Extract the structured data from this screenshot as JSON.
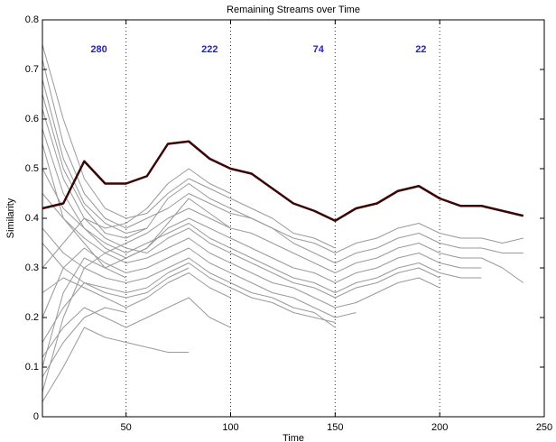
{
  "chart_data": {
    "type": "line",
    "title": "Remaining Streams over Time",
    "xlabel": "Time",
    "ylabel": "Similarity",
    "x": [
      10,
      20,
      30,
      40,
      50,
      60,
      70,
      80,
      90,
      100,
      110,
      120,
      130,
      140,
      150,
      160,
      170,
      180,
      190,
      200,
      210,
      220,
      230,
      240
    ],
    "xlim": [
      10,
      250
    ],
    "xticks": [
      50,
      100,
      150,
      200,
      250
    ],
    "ylim": [
      0,
      0.8
    ],
    "yticks": [
      0,
      0.1,
      0.2,
      0.3,
      0.4,
      0.5,
      0.6,
      0.7,
      0.8
    ],
    "markers": [
      50,
      100,
      150,
      200
    ],
    "annotation_color": "#1f1fd6",
    "annotations": [
      {
        "text": "280",
        "x": 37,
        "y": 0.74
      },
      {
        "text": "222",
        "x": 90,
        "y": 0.74
      },
      {
        "text": "74",
        "x": 142,
        "y": 0.74
      },
      {
        "text": "22",
        "x": 191,
        "y": 0.74
      }
    ],
    "series": [
      {
        "color": "#9a9a9a",
        "values": [
          0.72,
          0.55,
          0.45,
          0.4,
          0.38,
          0.4,
          0.42,
          0.45,
          0.43,
          0.41,
          0.4,
          0.38,
          0.36,
          0.35,
          0.33,
          0.35,
          0.36,
          0.38,
          0.39,
          0.37,
          0.36,
          0.36,
          0.35,
          0.36
        ]
      },
      {
        "color": "#9a9a9a",
        "values": [
          0.65,
          0.5,
          0.42,
          0.37,
          0.36,
          0.38,
          0.44,
          0.47,
          0.44,
          0.42,
          0.4,
          0.38,
          0.35,
          0.33,
          0.31,
          0.33,
          0.34,
          0.36,
          0.37,
          0.35,
          0.34,
          0.34,
          0.33,
          0.33
        ]
      },
      {
        "color": "#9a9a9a",
        "values": [
          0.05,
          0.2,
          0.3,
          0.33,
          0.35,
          0.37,
          0.4,
          0.42,
          0.4,
          0.38,
          0.37,
          0.35,
          0.33,
          0.31,
          0.29,
          0.31,
          0.32,
          0.34,
          0.35,
          0.33,
          0.32,
          0.32,
          0.3,
          0.27
        ]
      },
      {
        "color": "#9a9a9a",
        "values": [
          0.1,
          0.25,
          0.32,
          0.3,
          0.32,
          0.34,
          0.38,
          0.4,
          0.38,
          0.36,
          0.34,
          0.32,
          0.3,
          0.29,
          0.27,
          0.29,
          0.3,
          0.32,
          0.33,
          0.31,
          0.3,
          0.3,
          null,
          null
        ]
      },
      {
        "color": "#9a9a9a",
        "values": [
          0.58,
          0.45,
          0.38,
          0.35,
          0.33,
          0.35,
          0.37,
          0.39,
          0.36,
          0.34,
          0.32,
          0.3,
          0.28,
          0.27,
          0.25,
          0.27,
          0.28,
          0.3,
          0.31,
          0.29,
          0.28,
          0.28,
          null,
          null
        ]
      },
      {
        "color": "#9a9a9a",
        "values": [
          0.3,
          0.35,
          0.4,
          0.36,
          0.34,
          0.33,
          0.36,
          0.38,
          0.35,
          0.33,
          0.31,
          0.29,
          0.27,
          0.26,
          0.24,
          0.26,
          0.27,
          0.29,
          0.3,
          0.28,
          null,
          null,
          null,
          null
        ]
      },
      {
        "color": "#9a9a9a",
        "values": [
          0.45,
          0.4,
          0.36,
          0.33,
          0.31,
          0.32,
          0.34,
          0.36,
          0.33,
          0.31,
          0.29,
          0.27,
          0.26,
          0.24,
          0.22,
          0.23,
          0.25,
          0.27,
          0.28,
          0.26,
          null,
          null,
          null,
          null
        ]
      },
      {
        "color": "#9a9a9a",
        "values": [
          0.2,
          0.3,
          0.34,
          0.31,
          0.29,
          0.3,
          0.32,
          0.34,
          0.31,
          0.29,
          0.27,
          0.25,
          0.24,
          0.22,
          0.2,
          0.21,
          null,
          null,
          null,
          null,
          null,
          null,
          null,
          null
        ]
      },
      {
        "color": "#9a9a9a",
        "values": [
          0.75,
          0.6,
          0.48,
          0.42,
          0.4,
          0.41,
          0.45,
          0.48,
          0.46,
          0.44,
          0.42,
          0.4,
          0.37,
          0.36,
          0.34,
          null,
          null,
          null,
          null,
          null,
          null,
          null,
          null,
          null
        ]
      },
      {
        "color": "#9a9a9a",
        "values": [
          0.15,
          0.22,
          0.27,
          0.26,
          0.25,
          0.26,
          0.29,
          0.31,
          0.28,
          0.26,
          0.24,
          0.23,
          0.21,
          0.2,
          0.19,
          null,
          null,
          null,
          null,
          null,
          null,
          null,
          null,
          null
        ]
      },
      {
        "color": "#9a9a9a",
        "values": [
          0.38,
          0.33,
          0.3,
          0.28,
          0.27,
          0.28,
          0.3,
          0.32,
          0.29,
          0.27,
          0.25,
          0.24,
          0.22,
          0.21,
          0.18,
          null,
          null,
          null,
          null,
          null,
          null,
          null,
          null,
          null
        ]
      },
      {
        "color": "#9a9a9a",
        "values": [
          0.5,
          0.42,
          0.38,
          0.34,
          0.32,
          0.34,
          0.39,
          0.44,
          0.41,
          0.38,
          null,
          null,
          null,
          null,
          null,
          null,
          null,
          null,
          null,
          null,
          null,
          null,
          null,
          null
        ]
      },
      {
        "color": "#9a9a9a",
        "values": [
          0.25,
          0.28,
          0.26,
          0.24,
          0.22,
          0.24,
          0.27,
          0.29,
          0.26,
          0.24,
          null,
          null,
          null,
          null,
          null,
          null,
          null,
          null,
          null,
          null,
          null,
          null,
          null,
          null
        ]
      },
      {
        "color": "#9a9a9a",
        "values": [
          0.62,
          0.48,
          0.4,
          0.38,
          0.39,
          0.42,
          0.47,
          0.5,
          0.47,
          0.45,
          null,
          null,
          null,
          null,
          null,
          null,
          null,
          null,
          null,
          null,
          null,
          null,
          null,
          null
        ]
      },
      {
        "color": "#9a9a9a",
        "values": [
          0.12,
          0.18,
          0.22,
          0.2,
          0.18,
          0.2,
          0.22,
          0.24,
          0.2,
          0.18,
          null,
          null,
          null,
          null,
          null,
          null,
          null,
          null,
          null,
          null,
          null,
          null,
          null,
          null
        ]
      },
      {
        "color": "#9a9a9a",
        "values": [
          0.35,
          0.3,
          0.27,
          0.25,
          0.24,
          0.25,
          0.28,
          0.3,
          null,
          null,
          null,
          null,
          null,
          null,
          null,
          null,
          null,
          null,
          null,
          null,
          null,
          null,
          null,
          null
        ]
      },
      {
        "color": "#9a9a9a",
        "values": [
          0.03,
          0.1,
          0.18,
          0.16,
          0.15,
          0.14,
          0.13,
          0.13,
          null,
          null,
          null,
          null,
          null,
          null,
          null,
          null,
          null,
          null,
          null,
          null,
          null,
          null,
          null,
          null
        ]
      },
      {
        "color": "#9a9a9a",
        "values": [
          0.68,
          0.52,
          0.43,
          0.39,
          0.37,
          0.38,
          null,
          null,
          null,
          null,
          null,
          null,
          null,
          null,
          null,
          null,
          null,
          null,
          null,
          null,
          null,
          null,
          null,
          null
        ]
      },
      {
        "color": "#9a9a9a",
        "values": [
          0.08,
          0.15,
          0.2,
          0.22,
          0.21,
          null,
          null,
          null,
          null,
          null,
          null,
          null,
          null,
          null,
          null,
          null,
          null,
          null,
          null,
          null,
          null,
          null,
          null,
          null
        ]
      },
      {
        "color": "#9a9a9a",
        "values": [
          0.55,
          0.4,
          0.35,
          0.3,
          0.28,
          null,
          null,
          null,
          null,
          null,
          null,
          null,
          null,
          null,
          null,
          null,
          null,
          null,
          null,
          null,
          null,
          null,
          null,
          null
        ]
      },
      {
        "color": "#3a0505",
        "emphasis": true,
        "values": [
          0.42,
          0.43,
          0.515,
          0.47,
          0.47,
          0.485,
          0.55,
          0.555,
          0.52,
          0.5,
          0.49,
          0.46,
          0.43,
          0.415,
          0.395,
          0.42,
          0.43,
          0.455,
          0.465,
          0.44,
          0.425,
          0.425,
          0.415,
          0.405
        ]
      }
    ]
  }
}
